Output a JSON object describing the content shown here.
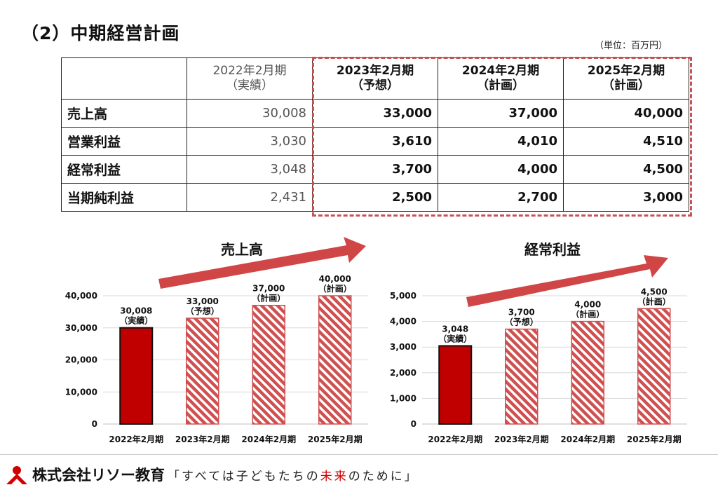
{
  "title": "（2）中期経営計画",
  "unit_label": "（単位：百万円）",
  "table": {
    "headers": [
      {
        "year": "2022年2月期",
        "note": "（実績）"
      },
      {
        "year": "2023年2月期",
        "note": "（予想）"
      },
      {
        "year": "2024年2月期",
        "note": "（計画）"
      },
      {
        "year": "2025年2月期",
        "note": "（計画）"
      }
    ],
    "rows": [
      {
        "label": "売上高",
        "values": [
          "30,008",
          "33,000",
          "37,000",
          "40,000"
        ]
      },
      {
        "label": "営業利益",
        "values": [
          "3,030",
          "3,610",
          "4,010",
          "4,510"
        ]
      },
      {
        "label": "経常利益",
        "values": [
          "3,048",
          "3,700",
          "4,000",
          "4,500"
        ]
      },
      {
        "label": "当期純利益",
        "values": [
          "2,431",
          "2,500",
          "2,700",
          "3,000"
        ]
      }
    ]
  },
  "chart_data": [
    {
      "type": "bar",
      "title": "売上高",
      "categories": [
        "2022年2月期",
        "2023年2月期",
        "2024年2月期",
        "2025年2月期"
      ],
      "values": [
        30008,
        33000,
        37000,
        40000
      ],
      "labels": [
        "30,008",
        "33,000",
        "37,000",
        "40,000"
      ],
      "notes": [
        "（実績）",
        "（予想）",
        "（計画）",
        "（計画）"
      ],
      "ylim": [
        0,
        40000
      ],
      "yticks": [
        0,
        10000,
        20000,
        30000,
        40000
      ],
      "ytick_labels": [
        "0",
        "10,000",
        "20,000",
        "30,000",
        "40,000"
      ],
      "grid": true,
      "colors": {
        "actual": "#c00000",
        "plan": "#d05050"
      }
    },
    {
      "type": "bar",
      "title": "経常利益",
      "categories": [
        "2022年2月期",
        "2023年2月期",
        "2024年2月期",
        "2025年2月期"
      ],
      "values": [
        3048,
        3700,
        4000,
        4500
      ],
      "labels": [
        "3,048",
        "3,700",
        "4,000",
        "4,500"
      ],
      "notes": [
        "（実績）",
        "（予想）",
        "（計画）",
        "（計画）"
      ],
      "ylim": [
        0,
        5000
      ],
      "yticks": [
        0,
        1000,
        2000,
        3000,
        4000,
        5000
      ],
      "ytick_labels": [
        "0",
        "1,000",
        "2,000",
        "3,000",
        "4,000",
        "5,000"
      ],
      "grid": true,
      "colors": {
        "actual": "#c00000",
        "plan": "#d05050"
      }
    }
  ],
  "footer": {
    "company": "株式会社リソー教育",
    "slogan_open": "「",
    "slogan_pre": "すべては子どもたちの",
    "slogan_red": "未来",
    "slogan_post": "のために",
    "slogan_close": "」",
    "brand_color": "#d10000"
  }
}
